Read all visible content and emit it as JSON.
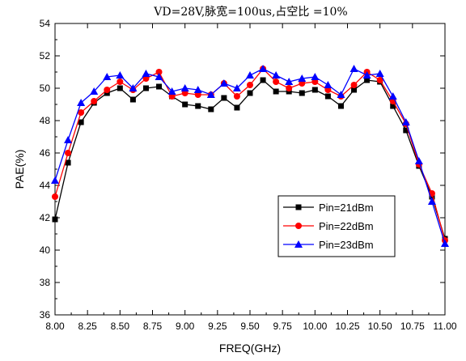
{
  "chart_data": {
    "type": "line",
    "title": "VD=28V,脉宽=100us,占空比 =10%",
    "xlabel": "FREQ(GHz)",
    "ylabel": "PAE(%)",
    "xlim": [
      8.0,
      11.0
    ],
    "ylim": [
      36,
      54
    ],
    "xticks": [
      8.0,
      8.25,
      8.5,
      8.75,
      9.0,
      9.25,
      9.5,
      9.75,
      10.0,
      10.25,
      10.5,
      10.75,
      11.0
    ],
    "xtick_labels": [
      "8.00",
      "8.25",
      "8.50",
      "8.75",
      "9.00",
      "9.25",
      "9.50",
      "9.75",
      "10.00",
      "10.25",
      "10.50",
      "10.75",
      "11.00"
    ],
    "yticks": [
      36,
      38,
      40,
      42,
      44,
      46,
      48,
      50,
      52,
      54
    ],
    "grid": false,
    "legend_position": "bottom-right",
    "x": [
      8.0,
      8.1,
      8.2,
      8.3,
      8.4,
      8.5,
      8.6,
      8.7,
      8.8,
      8.9,
      9.0,
      9.1,
      9.2,
      9.3,
      9.4,
      9.5,
      9.6,
      9.7,
      9.8,
      9.9,
      10.0,
      10.1,
      10.2,
      10.3,
      10.4,
      10.5,
      10.6,
      10.7,
      10.8,
      10.9,
      11.0
    ],
    "series": [
      {
        "name": "Pin=21dBm",
        "color": "#000000",
        "marker": "square",
        "values": [
          41.9,
          45.4,
          47.9,
          49.1,
          49.7,
          50.0,
          49.3,
          50.0,
          50.1,
          49.5,
          49.0,
          48.9,
          48.7,
          49.4,
          48.8,
          49.7,
          50.5,
          49.8,
          49.8,
          49.7,
          49.9,
          49.5,
          48.9,
          49.9,
          50.5,
          50.4,
          48.9,
          47.4,
          45.2,
          43.3,
          40.7
        ]
      },
      {
        "name": "Pin=22dBm",
        "color": "#ff0000",
        "marker": "circle",
        "values": [
          43.3,
          46.0,
          48.5,
          49.2,
          49.9,
          50.4,
          49.9,
          50.6,
          51.0,
          49.5,
          49.7,
          49.6,
          49.6,
          50.3,
          49.5,
          50.2,
          51.2,
          50.4,
          50.0,
          50.3,
          50.4,
          49.9,
          49.5,
          50.2,
          51.0,
          50.5,
          49.2,
          47.8,
          45.3,
          43.5,
          40.6
        ]
      },
      {
        "name": "Pin=23dBm",
        "color": "#0000ff",
        "marker": "triangle",
        "values": [
          44.3,
          46.8,
          49.1,
          49.8,
          50.7,
          50.8,
          50.0,
          50.9,
          50.7,
          49.8,
          50.0,
          49.9,
          49.6,
          50.3,
          50.0,
          50.8,
          51.2,
          50.8,
          50.4,
          50.6,
          50.7,
          50.2,
          49.6,
          51.2,
          50.8,
          50.9,
          49.5,
          47.9,
          45.5,
          43.0,
          40.4
        ]
      }
    ]
  }
}
